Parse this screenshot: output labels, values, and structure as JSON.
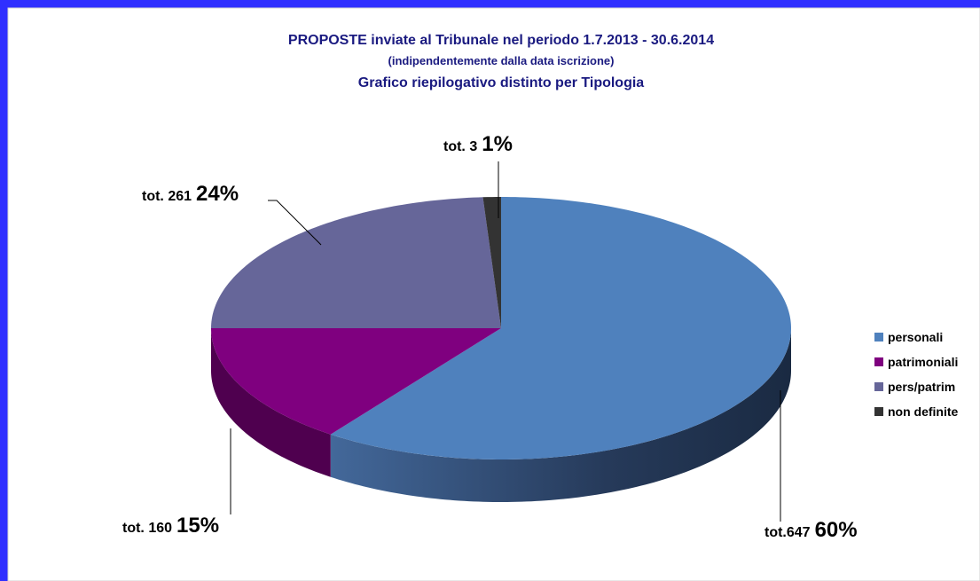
{
  "chart_data": {
    "type": "pie",
    "title": "PROPOSTE inviate al Tribunale nel periodo 1.7.2013 - 30.6.2014",
    "subtitle": "(indipendentemente dalla data iscrizione)",
    "subtitle2": "Grafico riepilogativo distinto per Tipologia",
    "categories": [
      "personali",
      "patrimoniali",
      "pers/patrim",
      "non definite"
    ],
    "values": [
      60,
      15,
      24,
      1
    ],
    "value_labels": [
      "60%",
      "15%",
      "24%",
      "1%"
    ],
    "count_labels": [
      "tot.647",
      "tot. 160",
      "tot. 261",
      "tot. 3"
    ],
    "colors": [
      "#4f81bd",
      "#7f007f",
      "#666699",
      "#333333"
    ],
    "legend": "right"
  }
}
